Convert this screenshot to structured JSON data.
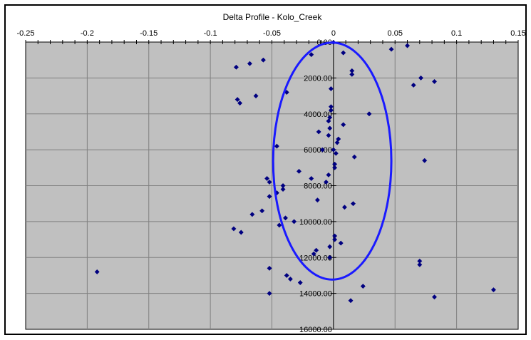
{
  "chart_data": {
    "type": "scatter",
    "title": "Delta Profile  - Kolo_Creek",
    "xlabel": "",
    "ylabel": "",
    "xlim": [
      -0.25,
      0.15
    ],
    "ylim": [
      0,
      16000
    ],
    "y_inverted": true,
    "x_ticks": [
      "-0.25",
      "-0.2",
      "-0.15",
      "-0.1",
      "-0.05",
      "0",
      "0.05",
      "0.1",
      "0.15"
    ],
    "y_ticks": [
      "0.00",
      "2000.00",
      "4000.00",
      "6000.00",
      "8000.00",
      "10000.00",
      "12000.00",
      "14000.00",
      "16000.00"
    ],
    "grid": true,
    "legend": "none",
    "colors": {
      "plot_background": "#c0c0c0",
      "marker": "#000080",
      "ellipse": "#1a1aff",
      "grid": "#808080"
    },
    "annotation": {
      "shape": "ellipse",
      "center_x": -0.001,
      "center_y": 6630,
      "semi_x": 0.048,
      "semi_y": 6600
    },
    "series": [
      {
        "marker": "diamond",
        "x": [
          0.0,
          0.008,
          0.047,
          0.06,
          -0.018,
          0.015,
          0.015,
          -0.057,
          -0.079,
          -0.068,
          0.071,
          0.082,
          0.065,
          -0.002,
          -0.038,
          -0.063,
          -0.078,
          -0.076,
          -0.002,
          -0.002,
          -0.003,
          0.029,
          -0.004,
          -0.003,
          0.008,
          -0.012,
          -0.004,
          0.004,
          0.003,
          -0.046,
          0.0,
          0.002,
          0.001,
          -0.009,
          0.017,
          0.074,
          0.001,
          -0.028,
          -0.004,
          -0.018,
          -0.006,
          -0.054,
          -0.052,
          -0.041,
          -0.041,
          -0.046,
          -0.052,
          -0.013,
          0.016,
          0.009,
          -0.058,
          -0.066,
          -0.039,
          -0.032,
          -0.044,
          -0.081,
          -0.075,
          0.001,
          0.001,
          0.006,
          -0.003,
          -0.014,
          -0.016,
          -0.003,
          0.07,
          0.07,
          -0.052,
          -0.192,
          -0.038,
          -0.035,
          -0.027,
          0.024,
          -0.052,
          0.082,
          0.014,
          0.13
        ],
        "y": [
          20,
          600,
          400,
          200,
          700,
          1600,
          1800,
          1000,
          1400,
          1200,
          2000,
          2200,
          2400,
          2600,
          2800,
          3000,
          3200,
          3400,
          3600,
          3800,
          4200,
          4000,
          4400,
          4800,
          4600,
          5000,
          5200,
          5400,
          5600,
          5800,
          6000,
          6200,
          6800,
          6000,
          6400,
          6600,
          7000,
          7200,
          7400,
          7600,
          7800,
          7600,
          7800,
          8000,
          8200,
          8400,
          8600,
          8800,
          9000,
          9200,
          9400,
          9600,
          9800,
          10000,
          10200,
          10400,
          10600,
          10800,
          11000,
          11200,
          11400,
          11600,
          11800,
          12000,
          12200,
          12400,
          12600,
          12800,
          13000,
          13200,
          13400,
          13600,
          14000,
          14200,
          14400,
          13800
        ]
      }
    ]
  }
}
